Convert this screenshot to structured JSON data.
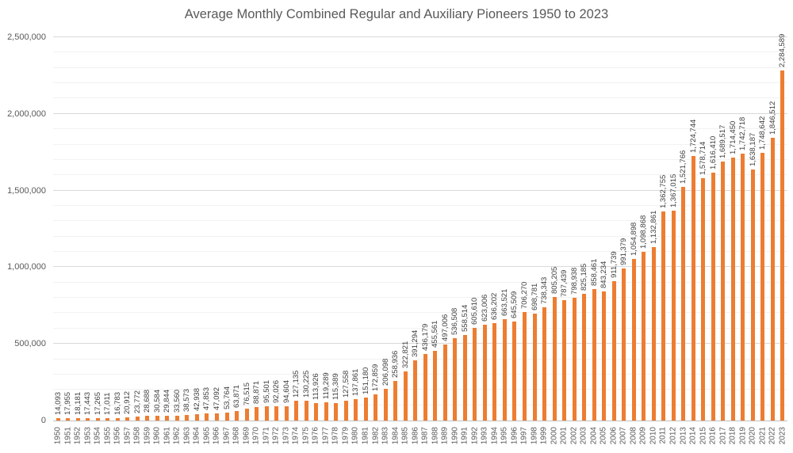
{
  "title": "Average Monthly Combined Regular and Auxiliary Pioneers 1950 to 2023",
  "colors": {
    "bar": "#ED7D31",
    "title_text": "#595959",
    "axis_text": "#595959",
    "value_label_text": "#3f3f3f",
    "major_gridline": "#d9d9d9",
    "minor_gridline": "#f2f2f2",
    "axis_line": "#bfbfbf",
    "background": "#ffffff"
  },
  "chart_data": {
    "type": "bar",
    "title": "Average Monthly Combined Regular and Auxiliary Pioneers 1950 to 2023",
    "xlabel": "",
    "ylabel": "",
    "ylim": [
      0,
      2500000
    ],
    "major_step": 500000,
    "minor_step": 100000,
    "grid": true,
    "legend": false,
    "data_labels": true,
    "yticklabels": [
      "0",
      "500,000",
      "1,000,000",
      "1,500,000",
      "2,000,000",
      "2,500,000"
    ],
    "categories": [
      "1950",
      "1951",
      "1952",
      "1953",
      "1954",
      "1955",
      "1956",
      "1957",
      "1958",
      "1959",
      "1960",
      "1961",
      "1962",
      "1963",
      "1964",
      "1965",
      "1966",
      "1967",
      "1968",
      "1969",
      "1970",
      "1971",
      "1972",
      "1973",
      "1974",
      "1975",
      "1976",
      "1977",
      "1978",
      "1979",
      "1980",
      "1981",
      "1982",
      "1983",
      "1984",
      "1985",
      "1986",
      "1987",
      "1988",
      "1989",
      "1990",
      "1991",
      "1992",
      "1993",
      "1994",
      "1995",
      "1996",
      "1997",
      "1998",
      "1999",
      "2000",
      "2001",
      "2002",
      "2003",
      "2004",
      "2005",
      "2006",
      "2007",
      "2008",
      "2009",
      "2010",
      "2011",
      "2012",
      "2013",
      "2014",
      "2015",
      "2016",
      "2017",
      "2018",
      "2019",
      "2020",
      "2021",
      "2022",
      "2023"
    ],
    "values": [
      14093,
      17955,
      18181,
      17443,
      17265,
      17011,
      16783,
      20912,
      23772,
      28688,
      30584,
      29844,
      33560,
      38573,
      42938,
      47853,
      47092,
      53764,
      63871,
      76515,
      88871,
      95501,
      92026,
      94604,
      127135,
      130225,
      113926,
      119289,
      115389,
      127558,
      137861,
      151180,
      172859,
      206098,
      258936,
      322821,
      391294,
      436179,
      455561,
      497006,
      536508,
      558514,
      605610,
      623006,
      636202,
      663521,
      645509,
      706270,
      698781,
      738343,
      805205,
      787439,
      798938,
      825185,
      858461,
      843234,
      911739,
      991379,
      1054898,
      1098868,
      1132861,
      1362755,
      1367015,
      1521766,
      1724744,
      1578714,
      1616410,
      1689517,
      1714450,
      1742718,
      1638187,
      1748642,
      1846512,
      2284589
    ]
  }
}
